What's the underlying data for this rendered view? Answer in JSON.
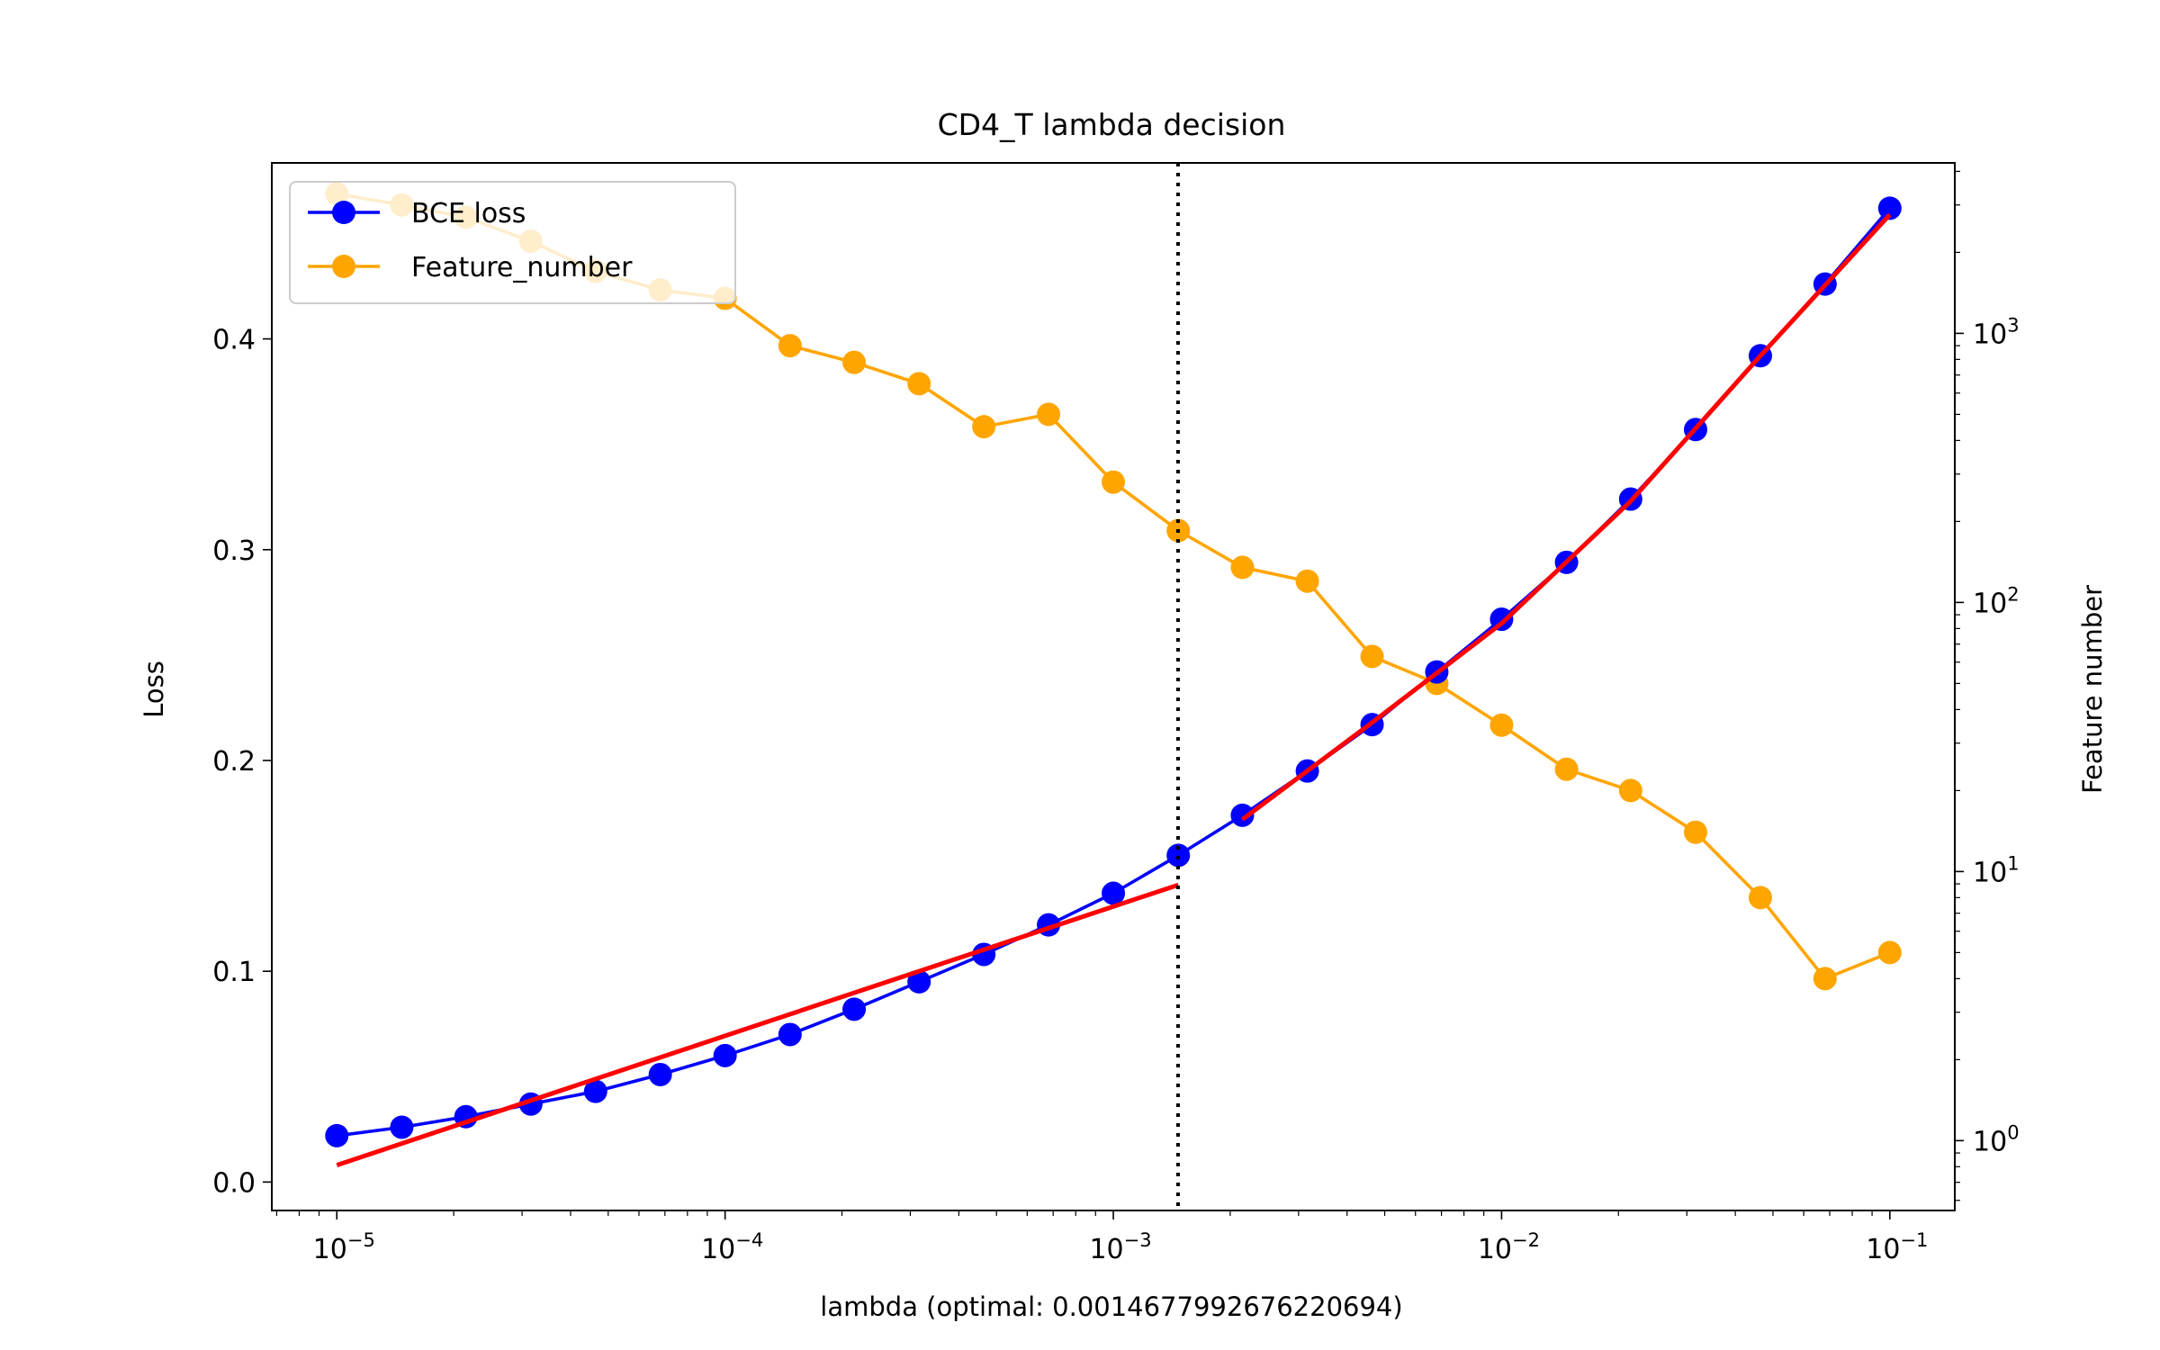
{
  "chart_data": {
    "type": "line",
    "title": "CD4_T lambda decision",
    "xlabel": "lambda (optimal: 0.0014677992676220694)",
    "ylabel": "Loss",
    "y2label": "Feature number",
    "x_scale": "log",
    "y_scale": "linear",
    "y2_scale": "log",
    "xlim": [
      6.8e-06,
      0.147
    ],
    "ylim": [
      -0.0135,
      0.4835
    ],
    "y2lim": [
      0.55,
      4300
    ],
    "x_ticks": [
      {
        "value": 1e-05,
        "base": "10",
        "exp": "−5"
      },
      {
        "value": 0.0001,
        "base": "10",
        "exp": "−4"
      },
      {
        "value": 0.001,
        "base": "10",
        "exp": "−3"
      },
      {
        "value": 0.01,
        "base": "10",
        "exp": "−2"
      },
      {
        "value": 0.1,
        "base": "10",
        "exp": "−1"
      }
    ],
    "y_ticks": [
      {
        "value": 0.0,
        "label": "0.0"
      },
      {
        "value": 0.1,
        "label": "0.1"
      },
      {
        "value": 0.2,
        "label": "0.2"
      },
      {
        "value": 0.3,
        "label": "0.3"
      },
      {
        "value": 0.4,
        "label": "0.4"
      }
    ],
    "y2_ticks": [
      {
        "value": 1,
        "base": "10",
        "exp": "0"
      },
      {
        "value": 10,
        "base": "10",
        "exp": "1"
      },
      {
        "value": 100,
        "base": "10",
        "exp": "2"
      },
      {
        "value": 1000,
        "base": "10",
        "exp": "3"
      }
    ],
    "x": [
      1e-05,
      1.47e-05,
      2.15e-05,
      3.16e-05,
      4.64e-05,
      6.81e-05,
      0.0001,
      0.000147,
      0.000215,
      0.000316,
      0.000464,
      0.000681,
      0.001,
      0.00147,
      0.00215,
      0.00316,
      0.00464,
      0.00681,
      0.01,
      0.0147,
      0.0215,
      0.0316,
      0.0464,
      0.0681,
      0.1
    ],
    "series": [
      {
        "name": "BCE loss",
        "axis": "left",
        "color": "#0000ff",
        "values": [
          0.022,
          0.026,
          0.031,
          0.037,
          0.043,
          0.051,
          0.06,
          0.07,
          0.082,
          0.095,
          0.108,
          0.122,
          0.137,
          0.155,
          0.174,
          0.195,
          0.217,
          0.242,
          0.267,
          0.294,
          0.324,
          0.357,
          0.392,
          0.426,
          0.462
        ]
      },
      {
        "name": "Feature_number",
        "axis": "right",
        "color": "#ffa500",
        "values": [
          3300,
          3000,
          2700,
          2200,
          1700,
          1450,
          1350,
          900,
          780,
          650,
          450,
          500,
          280,
          185,
          135,
          120,
          63,
          50,
          35,
          24,
          20,
          14,
          8,
          4,
          5
        ]
      }
    ],
    "fit_lines": [
      {
        "color": "#ff0000",
        "x": [
          1e-05,
          0.00147
        ],
        "y": [
          0.008,
          0.141
        ]
      },
      {
        "color": "#ff0000",
        "x": [
          0.00215,
          0.00464,
          0.01,
          0.0215,
          0.0464,
          0.1
        ],
        "y": [
          0.172,
          0.218,
          0.265,
          0.323,
          0.392,
          0.459
        ]
      }
    ],
    "vline": {
      "x": 0.0014677992676220694,
      "color": "#000000",
      "style": "dotted"
    },
    "legend": {
      "position": "top-left",
      "frame": true
    },
    "grid": false
  }
}
